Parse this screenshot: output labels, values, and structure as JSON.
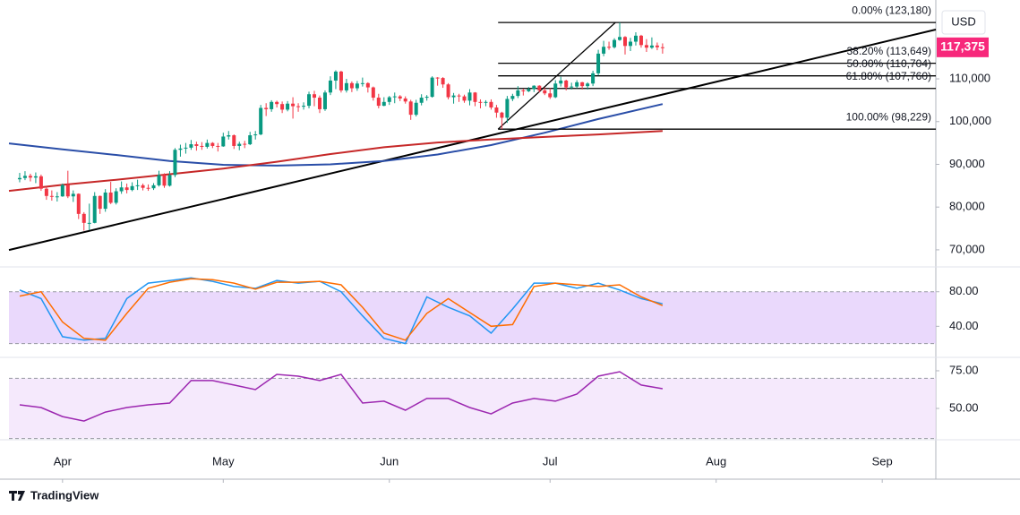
{
  "brand": "TradingView",
  "chart_data": [
    {
      "type": "candlestick",
      "currency": "USD",
      "up_color": "#089981",
      "down_color": "#f23645",
      "open": [
        86500,
        86800,
        87300,
        86900,
        87200,
        84300,
        82600,
        82400,
        82500,
        85200,
        82500,
        83100,
        78400,
        76300,
        76300,
        82600,
        79600,
        83400,
        81000,
        83700,
        84600,
        84000,
        84900,
        85100,
        84500,
        84400,
        85100,
        87500,
        85000,
        87500,
        93400,
        93700,
        93900,
        94700,
        94300,
        94100,
        95000,
        94300,
        94200,
        96500,
        96800,
        94300,
        94800,
        94700,
        96800,
        97000,
        103200,
        102900,
        104600,
        104100,
        102800,
        104200,
        103600,
        103500,
        103700,
        106400,
        105600,
        102900,
        106800,
        109600,
        111700,
        107300,
        109000,
        107800,
        108900,
        109000,
        108000,
        105600,
        103700,
        104600,
        105700,
        105900,
        105400,
        104700,
        101600,
        104400,
        105600,
        105800,
        110300,
        110200,
        108700,
        105700,
        106100,
        105900,
        104900,
        106800,
        104600,
        104400,
        104600,
        103300,
        102100,
        100900,
        105300,
        106000,
        107300,
        107100,
        107600,
        108400,
        107300,
        106600,
        105700,
        108900,
        109600,
        108000,
        108200,
        109200,
        108300,
        108900,
        111300,
        115900,
        117500,
        117400,
        119100,
        119800,
        117700,
        118700,
        120100,
        117900,
        117300,
        117800,
        117400
      ],
      "high": [
        88000,
        88400,
        87800,
        88100,
        87600,
        84800,
        83900,
        83500,
        85500,
        88500,
        83900,
        83200,
        78800,
        80800,
        83500,
        82700,
        84200,
        85900,
        84400,
        86000,
        85500,
        85800,
        86400,
        85500,
        85300,
        85600,
        88500,
        87900,
        88400,
        93800,
        94600,
        95000,
        95700,
        95300,
        95200,
        95800,
        95200,
        95000,
        97400,
        97800,
        97000,
        95300,
        95500,
        97600,
        97800,
        103900,
        104300,
        105000,
        104900,
        104700,
        104800,
        105700,
        104300,
        104500,
        107000,
        107200,
        106100,
        107300,
        110600,
        112000,
        111900,
        110000,
        109400,
        109500,
        110300,
        109200,
        108200,
        106500,
        105700,
        106000,
        106800,
        106200,
        105900,
        105100,
        105100,
        106400,
        106200,
        110600,
        110400,
        110400,
        109000,
        106700,
        106500,
        106300,
        107600,
        106900,
        105200,
        105000,
        105200,
        103900,
        102300,
        106000,
        106500,
        108300,
        107700,
        108100,
        108500,
        108500,
        108000,
        107800,
        109700,
        110500,
        109800,
        109100,
        109700,
        109300,
        109200,
        111900,
        116800,
        118900,
        118700,
        119500,
        123180,
        120000,
        119600,
        120900,
        120300,
        119300,
        119700,
        118500,
        118300
      ],
      "low": [
        85800,
        86300,
        86000,
        85600,
        83800,
        81700,
        81500,
        81300,
        82400,
        82100,
        81200,
        77200,
        74500,
        74600,
        76200,
        78400,
        78900,
        80700,
        80600,
        83100,
        83200,
        83700,
        84000,
        83900,
        83800,
        84000,
        84800,
        84500,
        84800,
        87000,
        91800,
        92500,
        93400,
        93200,
        93400,
        93700,
        93800,
        93000,
        94100,
        95800,
        93600,
        93300,
        93800,
        94500,
        95800,
        96800,
        101300,
        102300,
        103300,
        102000,
        102400,
        100700,
        102300,
        102800,
        103100,
        103600,
        102000,
        102500,
        106200,
        107600,
        106800,
        106800,
        106900,
        107200,
        108200,
        106800,
        104900,
        103100,
        103600,
        103900,
        104300,
        104800,
        104200,
        100400,
        101200,
        103800,
        104900,
        105600,
        108400,
        107900,
        105200,
        104200,
        104600,
        104400,
        103800,
        103600,
        103100,
        103600,
        102800,
        100900,
        98229,
        99700,
        104800,
        105500,
        106100,
        106900,
        106900,
        106800,
        106200,
        105300,
        105500,
        108200,
        107300,
        107500,
        107800,
        107500,
        107500,
        108300,
        110800,
        115300,
        116800,
        117100,
        118900,
        115700,
        116500,
        117800,
        117300,
        116300,
        117000,
        116700,
        115900
      ],
      "close": [
        86800,
        87300,
        86900,
        87200,
        84300,
        82600,
        82400,
        82500,
        85200,
        82500,
        83100,
        78400,
        76300,
        76300,
        82600,
        79600,
        83400,
        81000,
        83700,
        84600,
        84000,
        84900,
        85100,
        84500,
        84400,
        85100,
        87500,
        85000,
        87500,
        93400,
        93700,
        93900,
        94700,
        94300,
        94100,
        95000,
        94300,
        94200,
        96500,
        96800,
        94300,
        94800,
        94700,
        96800,
        97000,
        103200,
        102900,
        104600,
        104100,
        102800,
        104200,
        103600,
        103500,
        103700,
        106400,
        105600,
        102900,
        106800,
        109600,
        111700,
        107300,
        109000,
        107800,
        108900,
        109000,
        108000,
        105600,
        103700,
        104600,
        105700,
        105900,
        105400,
        104700,
        101600,
        104400,
        105600,
        105800,
        110300,
        110200,
        108700,
        105700,
        106100,
        105900,
        104900,
        106800,
        104600,
        104400,
        104600,
        103300,
        102100,
        100900,
        105300,
        106000,
        107300,
        107100,
        107600,
        108400,
        107300,
        106600,
        105700,
        108900,
        109600,
        108000,
        108200,
        109200,
        108300,
        108900,
        111300,
        115900,
        117500,
        117400,
        119100,
        119800,
        117700,
        118700,
        120100,
        117900,
        117300,
        117800,
        117400,
        117375
      ],
      "xlim": [
        -2,
        171
      ],
      "xticks": [
        {
          "value": 8,
          "label": "Apr"
        },
        {
          "value": 38,
          "label": "May"
        },
        {
          "value": 69,
          "label": "Jun"
        },
        {
          "value": 99,
          "label": "Jul"
        },
        {
          "value": 130,
          "label": "Aug"
        },
        {
          "value": 161,
          "label": "Sep"
        }
      ],
      "ylim": [
        66000,
        128450
      ],
      "yticks": [
        {
          "value": 70000,
          "label": "70,000"
        },
        {
          "value": 80000,
          "label": "80,000"
        },
        {
          "value": 90000,
          "label": "90,000"
        },
        {
          "value": 100000,
          "label": "100,000"
        },
        {
          "value": 110000,
          "label": "110,000"
        }
      ],
      "last_price": {
        "value": 117375,
        "label": "117,375"
      },
      "last_price_color": "#f7287b",
      "lines": [
        {
          "color": "#2a4ea8",
          "x": [
            -2,
            8,
            18,
            28,
            38,
            48,
            58,
            68,
            78,
            88,
            98,
            108,
            120
          ],
          "values": [
            94900,
            93500,
            92200,
            90800,
            89900,
            89700,
            90000,
            90800,
            92300,
            94500,
            97400,
            100600,
            104100
          ]
        },
        {
          "color": "#c62828",
          "x": [
            -2,
            8,
            18,
            28,
            38,
            48,
            58,
            68,
            78,
            88,
            98,
            108,
            120
          ],
          "values": [
            83800,
            85200,
            86400,
            87700,
            89000,
            90600,
            92400,
            94000,
            95100,
            95800,
            96400,
            97000,
            97800
          ]
        }
      ],
      "trendline": {
        "color": "#000000",
        "x": [
          -2,
          171
        ],
        "values": [
          69966,
          121528
        ]
      },
      "fib": {
        "color": "#000000",
        "x": [
          89.3,
          171
        ],
        "levels": [
          {
            "value": 123180,
            "label": "0.00% (123,180)"
          },
          {
            "value": 113649,
            "label": "38.20% (113,649)"
          },
          {
            "value": 110704,
            "label": "50.00% (110,704)"
          },
          {
            "value": 107760,
            "label": "61.80% (107,760)"
          },
          {
            "value": 98229,
            "label": "100.00% (98,229)"
          }
        ],
        "diagonal": {
          "x": [
            89.3,
            111.2
          ],
          "values": [
            98229,
            123180
          ]
        }
      }
    },
    {
      "type": "line",
      "x": [
        0,
        4,
        8,
        12,
        16,
        20,
        24,
        28,
        32,
        36,
        40,
        44,
        48,
        52,
        56,
        60,
        64,
        68,
        72,
        76,
        80,
        84,
        88,
        92,
        96,
        100,
        104,
        108,
        112,
        116,
        120
      ],
      "series": [
        {
          "color": "#2196f3",
          "values": [
            82,
            72,
            28,
            24,
            26,
            72,
            90,
            93,
            96,
            92,
            86,
            84,
            93,
            90,
            92,
            80,
            52,
            26,
            20,
            74,
            62,
            52,
            32,
            60,
            90,
            90,
            84,
            90,
            82,
            72,
            66
          ]
        },
        {
          "color": "#ff6d00",
          "values": [
            75,
            80,
            45,
            26,
            24,
            55,
            84,
            91,
            95,
            94,
            90,
            83,
            91,
            91,
            92,
            88,
            62,
            32,
            24,
            55,
            72,
            56,
            40,
            42,
            86,
            90,
            88,
            86,
            88,
            74,
            64
          ]
        }
      ],
      "ylim": [
        5.1,
        107.7
      ],
      "yticks": [
        {
          "value": 80,
          "label": "80.00"
        },
        {
          "value": 40,
          "label": "40.00"
        }
      ],
      "band": [
        20,
        80
      ],
      "band_color": "#e1c9fb"
    },
    {
      "type": "line",
      "x": [
        0,
        4,
        8,
        12,
        16,
        20,
        24,
        28,
        32,
        36,
        40,
        44,
        48,
        52,
        56,
        60,
        64,
        68,
        72,
        76,
        80,
        84,
        88,
        92,
        96,
        100,
        104,
        108,
        112,
        116,
        120
      ],
      "series": [
        {
          "color": "#9c27b0",
          "values": [
            52.4,
            50.6,
            44.6,
            41.6,
            47.6,
            50.6,
            52.4,
            53.6,
            68.5,
            68.5,
            65.5,
            62.5,
            72.6,
            71.4,
            68.5,
            72.6,
            53.6,
            54.8,
            48.8,
            56.6,
            56.6,
            50.6,
            46.4,
            53.6,
            56.6,
            54.8,
            59.5,
            71.4,
            74.4,
            65.5,
            63.1
          ]
        }
      ],
      "ylim": [
        29.8,
        83.3
      ],
      "yticks": [
        {
          "value": 75,
          "label": "75.00"
        },
        {
          "value": 50,
          "label": "50.00"
        }
      ],
      "band": [
        30,
        70
      ],
      "band_color": "#f1e0fb"
    }
  ]
}
